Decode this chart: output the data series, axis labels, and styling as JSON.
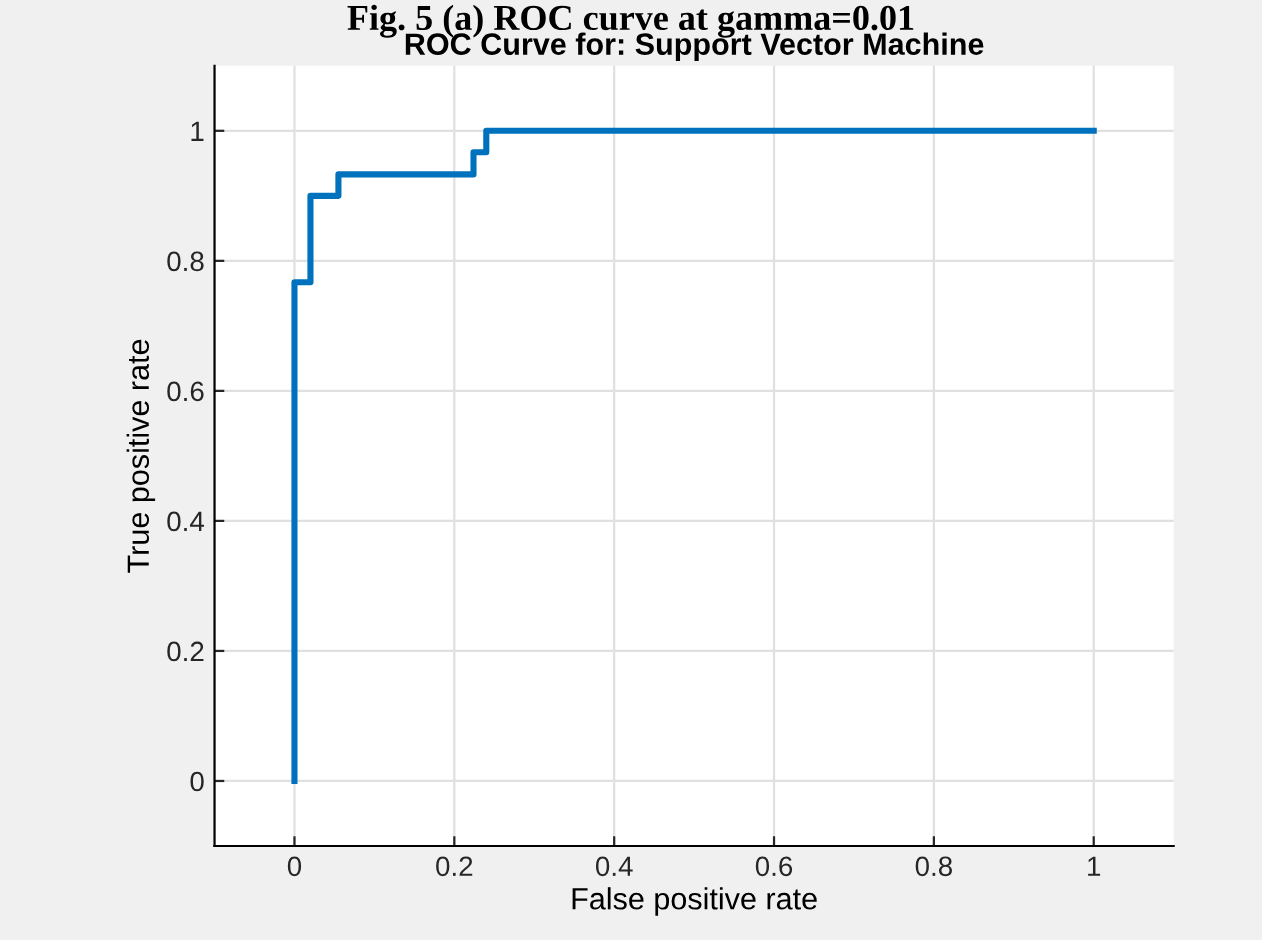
{
  "chart_data": {
    "type": "step",
    "title": "ROC Curve for: Support Vector Machine",
    "xlabel": "False positive rate",
    "ylabel": "True positive rate",
    "annotations": [
      "Fig. 5 (a) ROC curve at gamma=0.01"
    ],
    "x": [
      0,
      0,
      0.02,
      0.055,
      0.224,
      0.24,
      1
    ],
    "series": [
      {
        "color": "#0072bd",
        "values": [
          0,
          0.767,
          0.9,
          0.933,
          0.967,
          1,
          1
        ]
      }
    ],
    "xlim": [
      -0.1,
      1.1
    ],
    "ylim": [
      -0.1,
      1.1
    ],
    "xticks": [
      0,
      0.2,
      0.4,
      0.6,
      0.8,
      1
    ],
    "yticks": [
      0,
      0.2,
      0.4,
      0.6,
      0.8,
      1
    ],
    "grid": true,
    "legend": false
  }
}
